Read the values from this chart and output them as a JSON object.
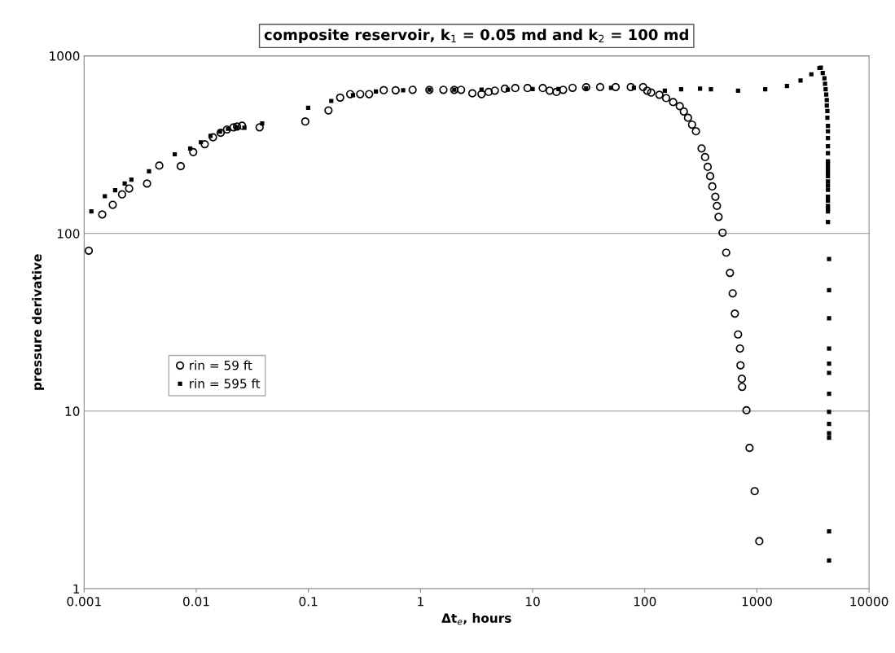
{
  "chart_data": {
    "type": "scatter",
    "title": "composite reservoir, k$_{1}$ = 0.05 md and k$_{2}$ = 100 md",
    "xlabel": "Δt$_{e}$, hours",
    "ylabel": "pressure derivative",
    "log": "xy",
    "grid": "y",
    "legend": "center left",
    "xlim": [
      0.001,
      10000
    ],
    "ylim": [
      1,
      1000
    ],
    "xticks": [
      0.001,
      0.01,
      0.1,
      1,
      10,
      100,
      1000,
      10000
    ],
    "yticks": [
      1,
      10,
      100,
      1000
    ],
    "series": [
      {
        "name": "rin = 59 ft",
        "color": "#000000",
        "marker": "circle",
        "x": [
          0.0011,
          0.00145,
          0.0018,
          0.00218,
          0.00252,
          0.00364,
          0.00468,
          0.00727,
          0.0094,
          0.0119,
          0.0141,
          0.0165,
          0.0188,
          0.0215,
          0.0231,
          0.0256,
          0.0367,
          0.0938,
          0.151,
          0.192,
          0.236,
          0.29,
          0.348,
          0.47,
          0.6,
          0.85,
          1.2,
          1.6,
          2.0,
          2.3,
          2.9,
          3.5,
          4.05,
          4.6,
          5.65,
          7,
          9,
          12.3,
          14.2,
          16.3,
          18.7,
          22.7,
          30,
          40,
          55,
          75,
          96.6,
          105,
          114,
          135,
          155,
          179,
          205,
          223,
          243,
          264,
          286,
          321,
          345,
          364,
          383,
          400,
          426,
          440,
          455,
          494,
          532,
          575,
          608,
          636,
          679,
          706,
          714,
          734,
          738,
          807,
          859,
          955,
          1050
        ],
        "values": [
          80,
          128,
          145,
          166,
          179,
          191,
          241,
          239,
          287,
          318,
          348,
          369,
          385,
          396,
          400,
          404,
          396,
          427,
          493,
          582,
          609,
          609,
          609,
          641,
          640,
          644,
          644,
          644,
          644,
          644,
          615,
          609,
          626,
          637,
          653,
          658,
          658,
          658,
          637,
          626,
          644,
          661,
          665,
          667,
          667,
          667,
          667,
          637,
          621,
          604,
          578,
          549,
          521,
          486,
          448,
          410,
          376,
          301,
          269,
          237,
          210,
          184,
          161,
          143,
          124,
          101,
          78,
          60,
          46,
          35.4,
          27,
          22.5,
          18.1,
          15.2,
          13.7,
          10.1,
          6.2,
          3.54,
          1.85
        ]
      },
      {
        "name": "rin = 595 ft",
        "color": "#000000",
        "marker": "square",
        "x": [
          0.00116,
          0.00153,
          0.00189,
          0.0023,
          0.00264,
          0.00379,
          0.00643,
          0.00883,
          0.011,
          0.0134,
          0.0163,
          0.0192,
          0.0228,
          0.0269,
          0.0387,
          0.0995,
          0.16,
          0.25,
          0.4,
          0.7,
          1.2,
          2,
          3.5,
          6,
          10,
          17,
          30,
          50,
          80,
          151,
          211,
          311,
          389,
          679,
          1186,
          1853,
          2449,
          3058,
          3610,
          3715,
          3863,
          4000,
          4050,
          4100,
          4150,
          4200,
          4200,
          4250,
          4250,
          4300,
          4300,
          4300,
          4300,
          4300,
          4300,
          4300,
          4300,
          4300,
          4300,
          4300,
          4300,
          4300,
          4300,
          4300,
          4300,
          4300,
          4300,
          4300,
          4400,
          4400,
          4400,
          4400,
          4400,
          4400,
          4400,
          4400,
          4400,
          4400,
          4400,
          4400,
          4400
        ],
        "values": [
          133,
          162,
          175,
          191,
          201,
          224,
          279,
          301,
          326,
          354,
          374,
          388,
          396,
          394,
          416,
          510,
          557,
          600,
          630,
          640,
          645,
          645,
          645,
          645,
          650,
          650,
          655,
          660,
          660,
          637,
          648,
          653,
          648,
          637,
          648,
          676,
          726,
          787,
          854,
          857,
          801,
          747,
          696,
          649,
          605,
          564,
          525,
          489,
          448,
          403,
          376,
          344,
          310,
          283,
          255,
          246,
          233,
          221,
          210,
          196,
          186,
          176,
          161,
          153,
          143,
          138,
          133,
          116,
          71.8,
          47.9,
          33.3,
          22.5,
          18.5,
          16.4,
          12.5,
          9.9,
          8.47,
          7.5,
          7.07,
          2.1,
          1.44
        ]
      }
    ]
  }
}
